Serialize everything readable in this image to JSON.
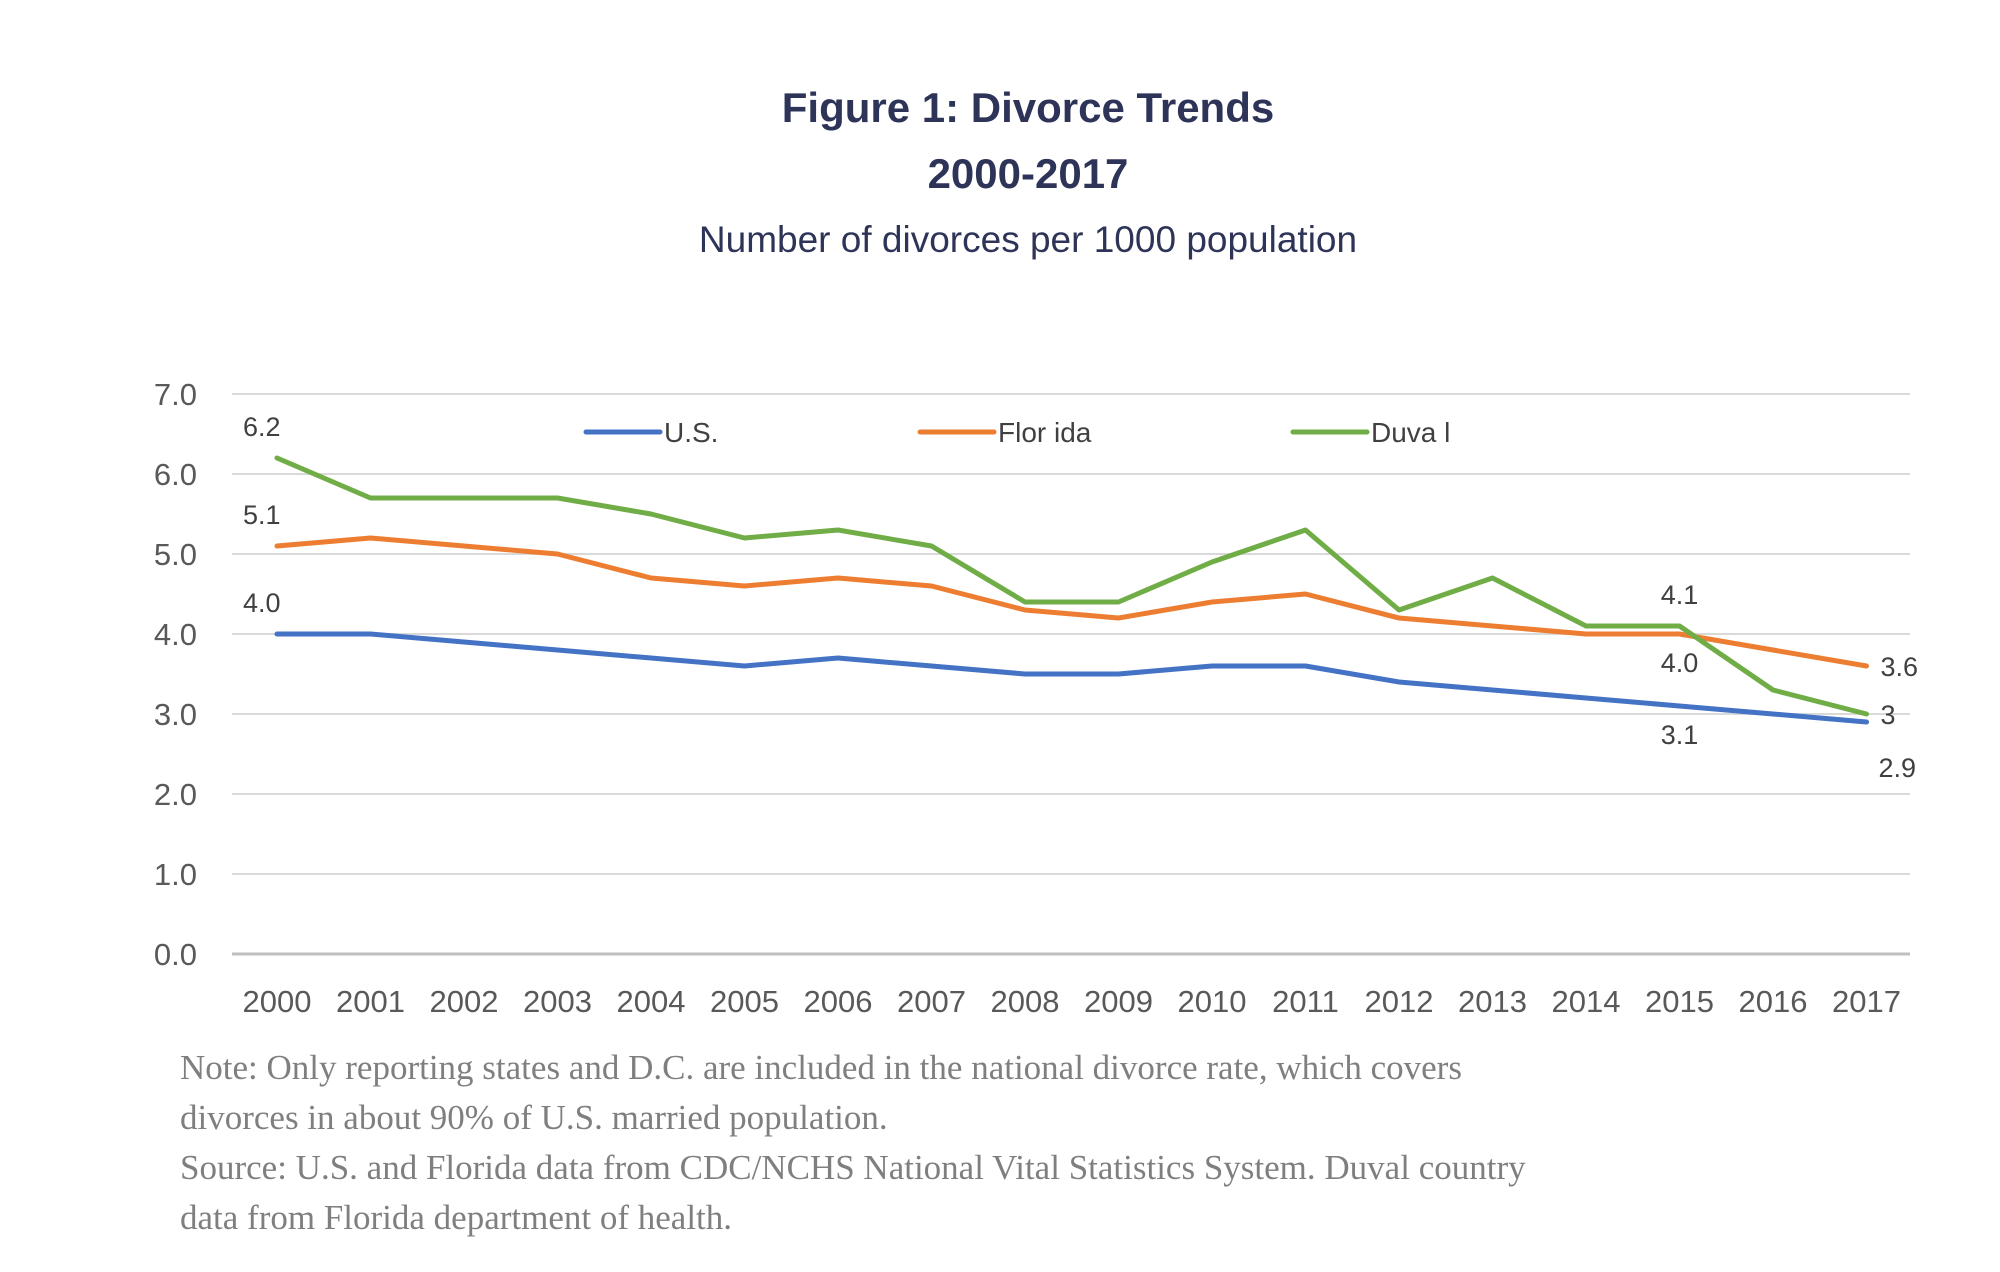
{
  "chart_data": {
    "type": "line",
    "title": "Figure 1: Divorce Trends",
    "title_line2": "2000-2017",
    "subtitle": "Number of divorces per 1000 population",
    "xlabel": "",
    "ylabel": "",
    "ylim": [
      0,
      7
    ],
    "yticks": [
      "0.0",
      "1.0",
      "2.0",
      "3.0",
      "4.0",
      "5.0",
      "6.0",
      "7.0"
    ],
    "grid": true,
    "legend_position": "top",
    "x": [
      "2000",
      "2001",
      "2002",
      "2003",
      "2004",
      "2005",
      "2006",
      "2007",
      "2008",
      "2009",
      "2010",
      "2011",
      "2012",
      "2013",
      "2014",
      "2015",
      "2016",
      "2017"
    ],
    "series": [
      {
        "name": "U.S.",
        "color": "#4472c4",
        "values": [
          4.0,
          4.0,
          3.9,
          3.8,
          3.7,
          3.6,
          3.7,
          3.6,
          3.5,
          3.5,
          3.6,
          3.6,
          3.4,
          3.3,
          3.2,
          3.1,
          3.0,
          2.9
        ]
      },
      {
        "name": "Florida",
        "color": "#ed7d31",
        "values": [
          5.1,
          5.2,
          5.1,
          5.0,
          4.7,
          4.6,
          4.7,
          4.6,
          4.3,
          4.2,
          4.4,
          4.5,
          4.2,
          4.1,
          4.0,
          4.0,
          3.8,
          3.6
        ]
      },
      {
        "name": "Duval",
        "color": "#70ad47",
        "values": [
          6.2,
          5.7,
          5.7,
          5.7,
          5.5,
          5.2,
          5.3,
          5.1,
          4.4,
          4.4,
          4.9,
          5.3,
          4.3,
          4.7,
          4.1,
          4.1,
          3.3,
          3.0
        ]
      }
    ],
    "legend_labels": [
      "U.S.",
      "Flor ida",
      "Duva l"
    ],
    "annotations": [
      {
        "series": 2,
        "index": 0,
        "text": "6.2",
        "pos": "above"
      },
      {
        "series": 1,
        "index": 0,
        "text": "5.1",
        "pos": "above"
      },
      {
        "series": 0,
        "index": 0,
        "text": "4.0",
        "pos": "above"
      },
      {
        "series": 2,
        "index": 15,
        "text": "4.1",
        "pos": "above"
      },
      {
        "series": 1,
        "index": 15,
        "text": "4.0",
        "pos": "below"
      },
      {
        "series": 0,
        "index": 15,
        "text": "3.1",
        "pos": "below"
      },
      {
        "series": 1,
        "index": 17,
        "text": "3.6",
        "pos": "right"
      },
      {
        "series": 2,
        "index": 17,
        "text": "3",
        "pos": "right"
      },
      {
        "series": 0,
        "index": 17,
        "text": "2.9",
        "pos": "belowright"
      }
    ]
  },
  "note": {
    "line1": "Note: Only reporting states and D.C. are included in the national divorce rate, which covers",
    "line2": "divorces in about 90% of U.S. married population.",
    "line3": "Source: U.S. and Florida data from CDC/NCHS National Vital Statistics System. Duval country",
    "line4": "data from Florida department of health."
  }
}
